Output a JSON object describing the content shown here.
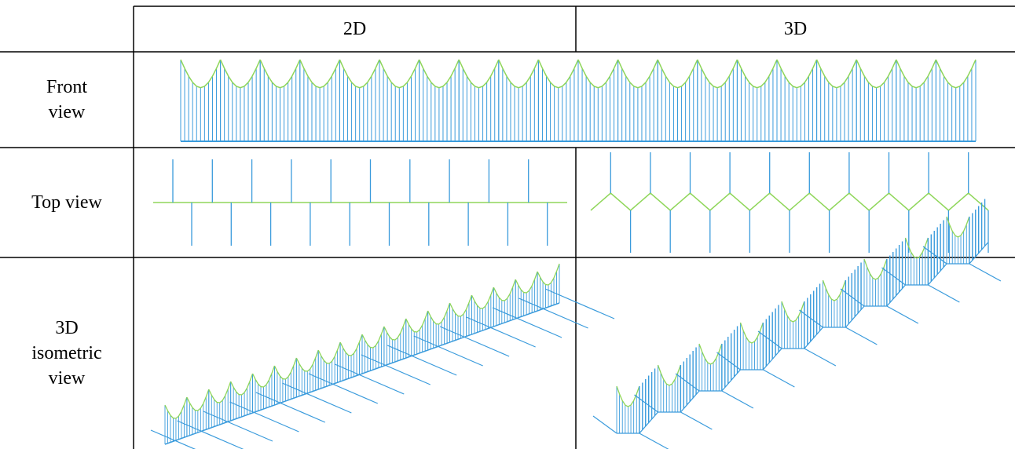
{
  "header": {
    "col_2d": "2D",
    "col_3d": "3D"
  },
  "rows": {
    "front": "Front\nview",
    "top": "Top view",
    "iso": "3D\nisometric\nview"
  },
  "colors": {
    "border": "#000000",
    "strut": "#3a9bdc",
    "edge": "#8fd65a"
  }
}
